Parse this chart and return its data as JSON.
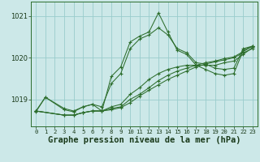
{
  "background_color": "#cce8e8",
  "grid_color": "#99cccc",
  "line_color": "#2d6e2d",
  "marker_color": "#2d6e2d",
  "xlabel": "Graphe pression niveau de la mer (hPa)",
  "xlabel_fontsize": 7.5,
  "ytick_labels": [
    "1019",
    "1020",
    "1021"
  ],
  "ytick_vals": [
    1019.0,
    1020.0,
    1021.0
  ],
  "ylim": [
    1018.35,
    1021.35
  ],
  "xlim": [
    -0.5,
    23.5
  ],
  "xtick_vals": [
    0,
    1,
    2,
    3,
    4,
    5,
    6,
    7,
    8,
    9,
    10,
    11,
    12,
    13,
    14,
    15,
    16,
    17,
    18,
    19,
    20,
    21,
    22,
    23
  ],
  "series": [
    {
      "x": [
        0,
        1,
        3,
        4,
        5,
        6,
        7,
        8,
        9,
        10,
        11,
        12,
        13,
        14,
        15,
        16,
        17,
        18,
        19,
        20,
        21,
        22,
        23
      ],
      "y": [
        1018.7,
        1019.05,
        1018.78,
        1018.72,
        1018.82,
        1018.88,
        1018.72,
        1019.55,
        1019.78,
        1020.38,
        1020.52,
        1020.62,
        1021.08,
        1020.62,
        1020.18,
        1020.08,
        1019.82,
        1019.72,
        1019.62,
        1019.58,
        1019.62,
        1020.18,
        1020.28
      ]
    },
    {
      "x": [
        0,
        3,
        4,
        5,
        6,
        7,
        8,
        9,
        10,
        11,
        12,
        13,
        14,
        15,
        16,
        17,
        18,
        19,
        20,
        21,
        22,
        23
      ],
      "y": [
        1018.72,
        1018.62,
        1018.62,
        1018.68,
        1018.72,
        1018.72,
        1018.75,
        1018.8,
        1018.92,
        1019.08,
        1019.22,
        1019.35,
        1019.48,
        1019.58,
        1019.68,
        1019.78,
        1019.85,
        1019.9,
        1019.95,
        1020.0,
        1020.12,
        1020.22
      ]
    },
    {
      "x": [
        0,
        3,
        4,
        5,
        6,
        7,
        8,
        9,
        10,
        11,
        12,
        13,
        14,
        15,
        16,
        17,
        18,
        19,
        20,
        21,
        22,
        23
      ],
      "y": [
        1018.72,
        1018.62,
        1018.62,
        1018.68,
        1018.72,
        1018.72,
        1018.78,
        1018.82,
        1019.0,
        1019.12,
        1019.28,
        1019.45,
        1019.58,
        1019.68,
        1019.75,
        1019.82,
        1019.88,
        1019.92,
        1019.98,
        1020.02,
        1020.15,
        1020.28
      ]
    },
    {
      "x": [
        0,
        3,
        4,
        5,
        6,
        7,
        8,
        9,
        10,
        11,
        12,
        13,
        14,
        15,
        16,
        17,
        18,
        19,
        20,
        21,
        22,
        23
      ],
      "y": [
        1018.72,
        1018.62,
        1018.62,
        1018.68,
        1018.72,
        1018.72,
        1018.82,
        1018.88,
        1019.12,
        1019.28,
        1019.48,
        1019.62,
        1019.72,
        1019.78,
        1019.82,
        1019.82,
        1019.82,
        1019.82,
        1019.88,
        1019.92,
        1020.08,
        1020.25
      ]
    },
    {
      "x": [
        0,
        1,
        3,
        4,
        5,
        6,
        7,
        8,
        9,
        10,
        11,
        12,
        13,
        14,
        15,
        16,
        17,
        18,
        19,
        20,
        21,
        22,
        23
      ],
      "y": [
        1018.72,
        1019.05,
        1018.75,
        1018.7,
        1018.82,
        1018.88,
        1018.82,
        1019.38,
        1019.62,
        1020.22,
        1020.45,
        1020.55,
        1020.72,
        1020.55,
        1020.22,
        1020.12,
        1019.88,
        1019.85,
        1019.75,
        1019.72,
        1019.75,
        1020.22,
        1020.28
      ]
    }
  ]
}
